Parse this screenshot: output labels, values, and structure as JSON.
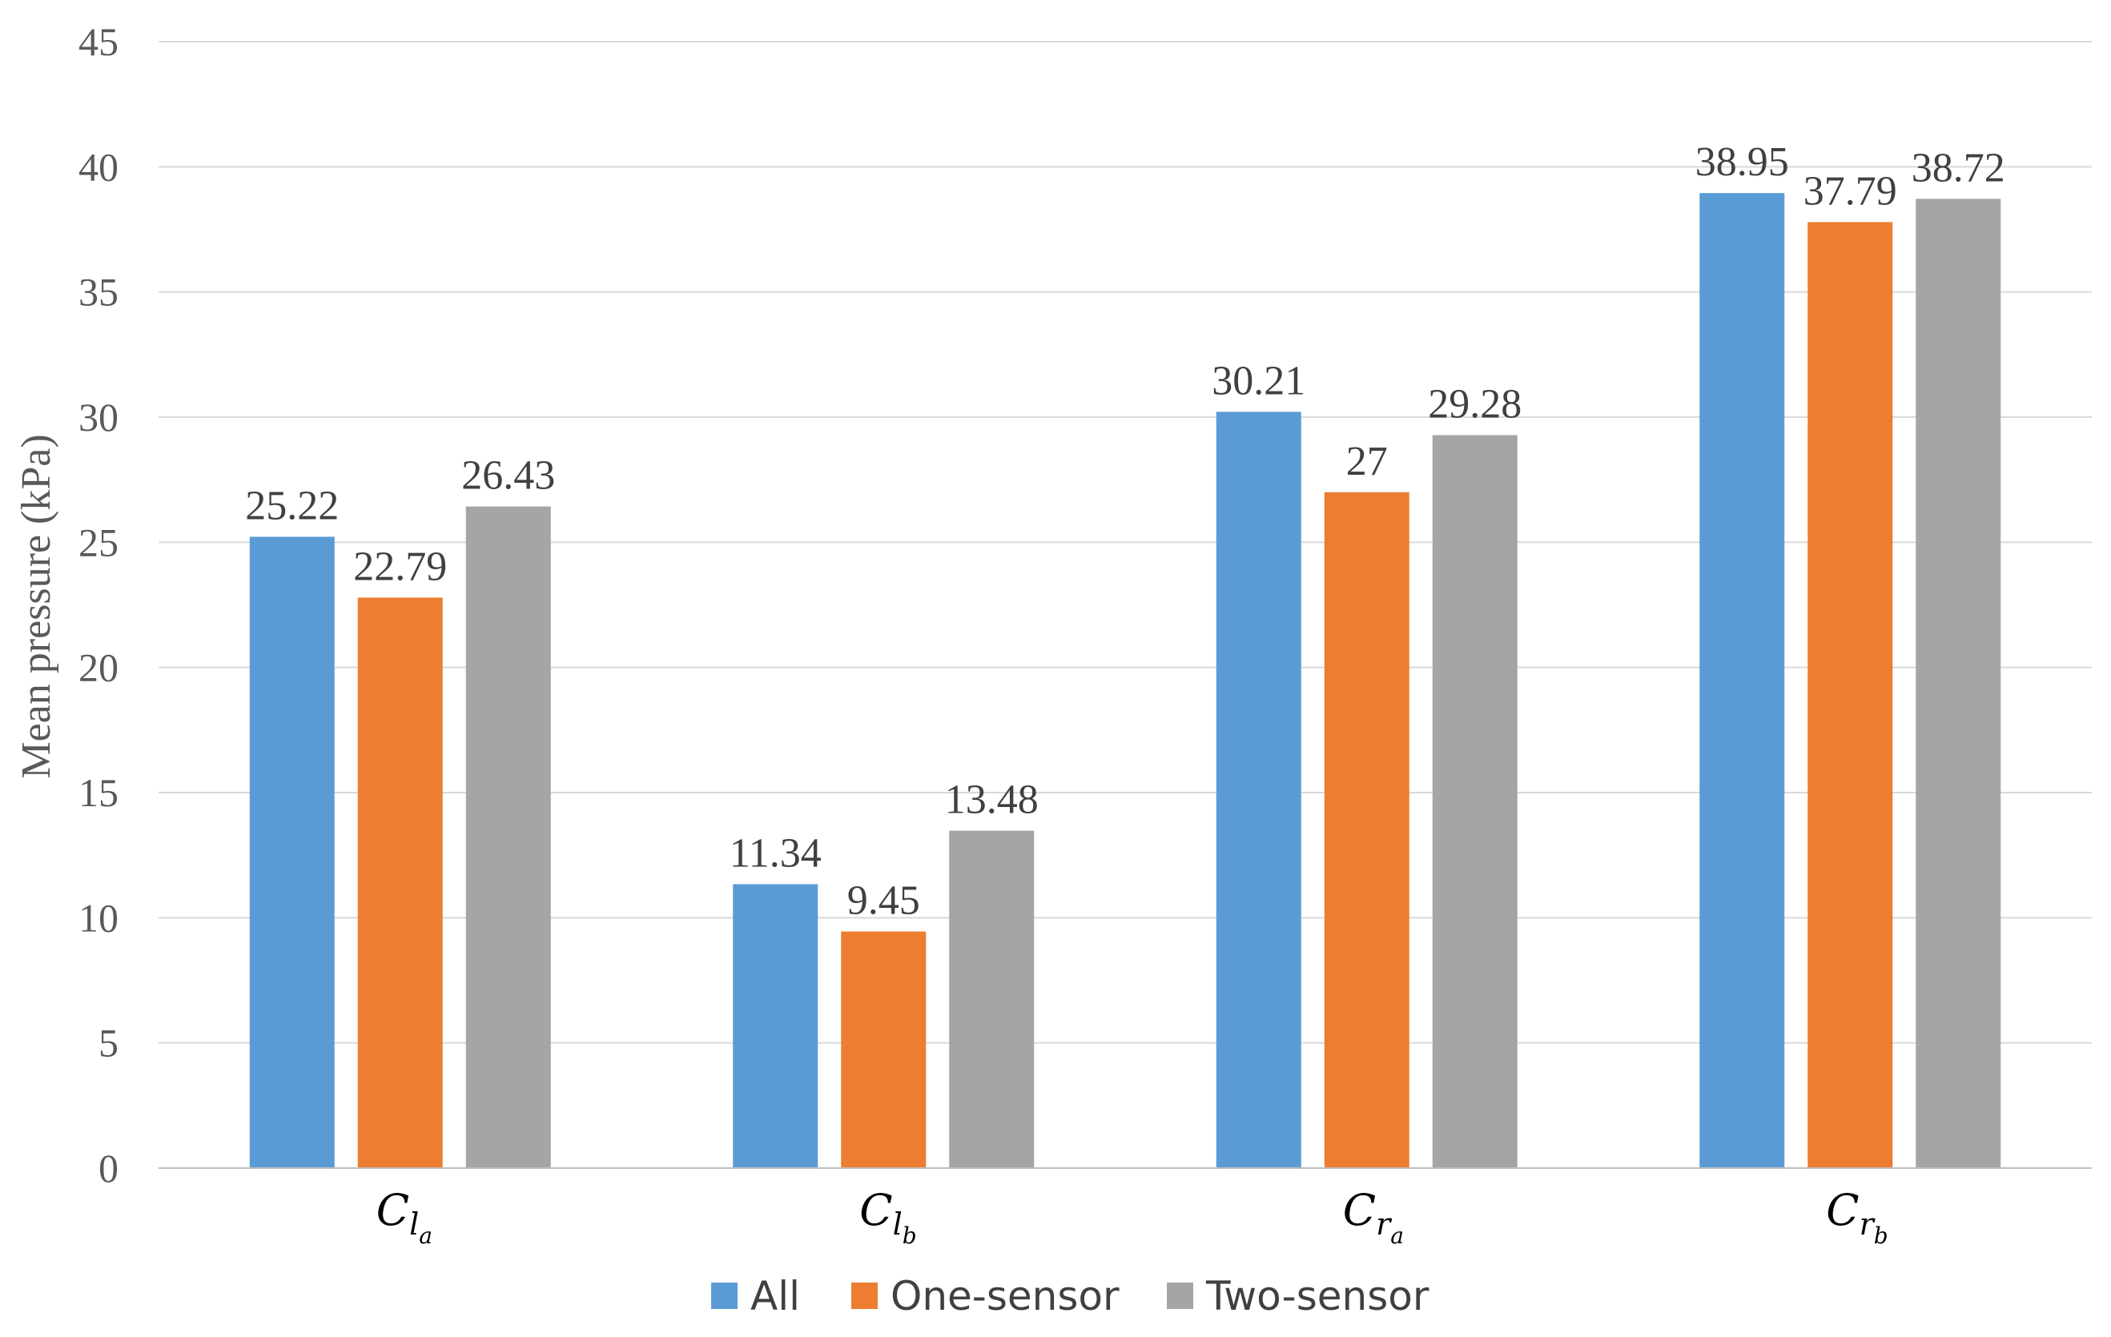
{
  "chart_data": {
    "type": "bar",
    "title": "",
    "xlabel": "",
    "ylabel": "Mean pressure (kPa)",
    "ylim": [
      0,
      45
    ],
    "yticks": [
      0,
      5,
      10,
      15,
      20,
      25,
      30,
      35,
      40,
      45
    ],
    "grid": true,
    "legend_position": "bottom",
    "categories": [
      {
        "main": "C",
        "sub": "l",
        "subsub": "a"
      },
      {
        "main": "C",
        "sub": "l",
        "subsub": "b"
      },
      {
        "main": "C",
        "sub": "r",
        "subsub": "a"
      },
      {
        "main": "C",
        "sub": "r",
        "subsub": "b"
      }
    ],
    "series": [
      {
        "name": "All",
        "color": "#5b9bd5",
        "values": [
          25.22,
          11.34,
          30.21,
          38.95
        ],
        "labels": [
          "25.22",
          "11.34",
          "30.21",
          "38.95"
        ]
      },
      {
        "name": "One-sensor",
        "color": "#ed7d31",
        "values": [
          22.79,
          9.45,
          27,
          37.79
        ],
        "labels": [
          "22.79",
          "9.45",
          "27",
          "37.79"
        ]
      },
      {
        "name": "Two-sensor",
        "color": "#a5a5a5",
        "values": [
          26.43,
          13.48,
          29.28,
          38.72
        ],
        "labels": [
          "26.43",
          "13.48",
          "29.28",
          "38.72"
        ]
      }
    ]
  }
}
